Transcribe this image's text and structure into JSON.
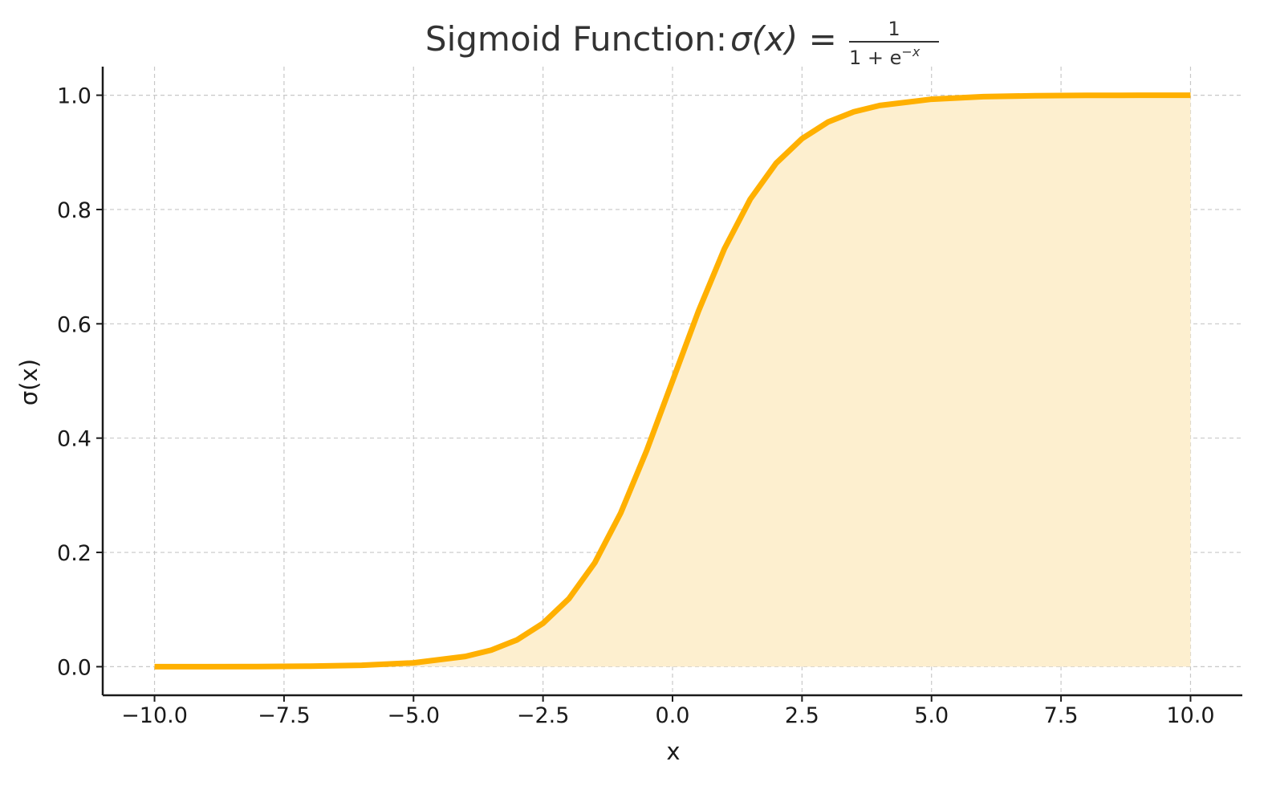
{
  "chart_data": {
    "type": "area",
    "title": {
      "prefix": "Sigmoid Function: ",
      "lhs": "σ(x) =",
      "numerator": "1",
      "denominator": "1 + e",
      "exponent": "−x"
    },
    "xlabel": "x",
    "ylabel": "σ(x)",
    "xlim": [
      -11,
      11
    ],
    "ylim": [
      -0.05,
      1.05
    ],
    "x_ticks": [
      -10,
      -7.5,
      -5,
      -2.5,
      0,
      2.5,
      5,
      7.5,
      10
    ],
    "x_tick_labels": [
      "−10.0",
      "−7.5",
      "−5.0",
      "−2.5",
      "0.0",
      "2.5",
      "5.0",
      "7.5",
      "10.0"
    ],
    "y_ticks": [
      0,
      0.2,
      0.4,
      0.6,
      0.8,
      1.0
    ],
    "y_tick_labels": [
      "0.0",
      "0.2",
      "0.4",
      "0.6",
      "0.8",
      "1.0"
    ],
    "grid": true,
    "series": [
      {
        "x": [
          -10,
          -9,
          -8,
          -7,
          -6,
          -5,
          -4,
          -3.5,
          -3,
          -2.5,
          -2,
          -1.5,
          -1,
          -0.5,
          0,
          0.5,
          1,
          1.5,
          2,
          2.5,
          3,
          3.5,
          4,
          5,
          6,
          7,
          8,
          9,
          10
        ],
        "y": [
          0.0,
          0.0001,
          0.0003,
          0.0009,
          0.0025,
          0.0067,
          0.018,
          0.029,
          0.047,
          0.076,
          0.119,
          0.182,
          0.269,
          0.378,
          0.5,
          0.622,
          0.731,
          0.818,
          0.881,
          0.924,
          0.953,
          0.971,
          0.982,
          0.993,
          0.9975,
          0.9991,
          0.9997,
          0.9999,
          1.0
        ],
        "color": "#FFB000",
        "fill_color": "#FDEFCF"
      }
    ]
  }
}
